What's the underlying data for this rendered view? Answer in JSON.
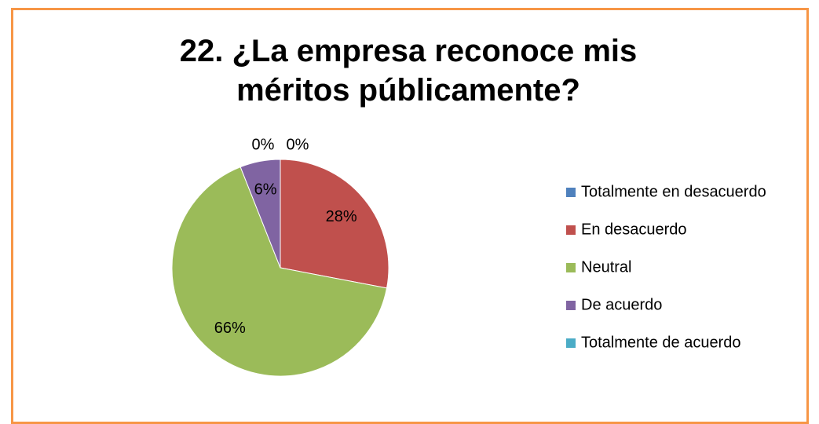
{
  "chart_data": {
    "type": "pie",
    "title": "22. ¿La empresa reconoce mis méritos públicamente?",
    "categories": [
      "Totalmente en desacuerdo",
      "En desacuerdo",
      "Neutral",
      "De acuerdo",
      "Totalmente de acuerdo"
    ],
    "values": [
      0,
      28,
      66,
      6,
      0
    ],
    "value_labels": [
      "0%",
      "28%",
      "66%",
      "6%",
      "0%"
    ],
    "colors": [
      "#4f81bd",
      "#c0504d",
      "#9bbb59",
      "#8064a2",
      "#4bacc6"
    ],
    "legend": "right"
  }
}
